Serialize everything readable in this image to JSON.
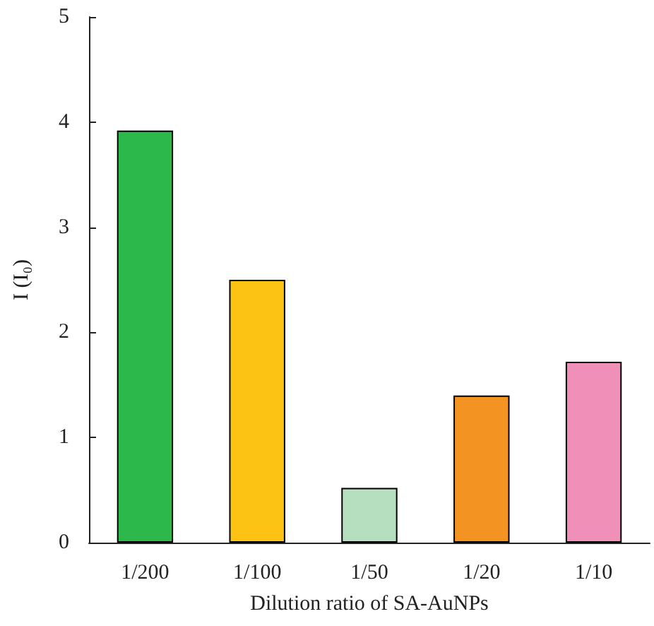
{
  "chart_data": {
    "type": "bar",
    "xlabel": "Dilution ratio of SA-AuNPs",
    "ylabel": "I (I₀)",
    "categories": [
      "1/200",
      "1/100",
      "1/50",
      "1/20",
      "1/10"
    ],
    "values": [
      3.92,
      2.5,
      0.52,
      1.4,
      1.72
    ],
    "colors": [
      "#2db84b",
      "#fcc314",
      "#b6dfc0",
      "#f39321",
      "#f08fb7"
    ],
    "ylim": [
      0,
      5
    ],
    "yticks": [
      0,
      1,
      2,
      3,
      4,
      5
    ]
  }
}
